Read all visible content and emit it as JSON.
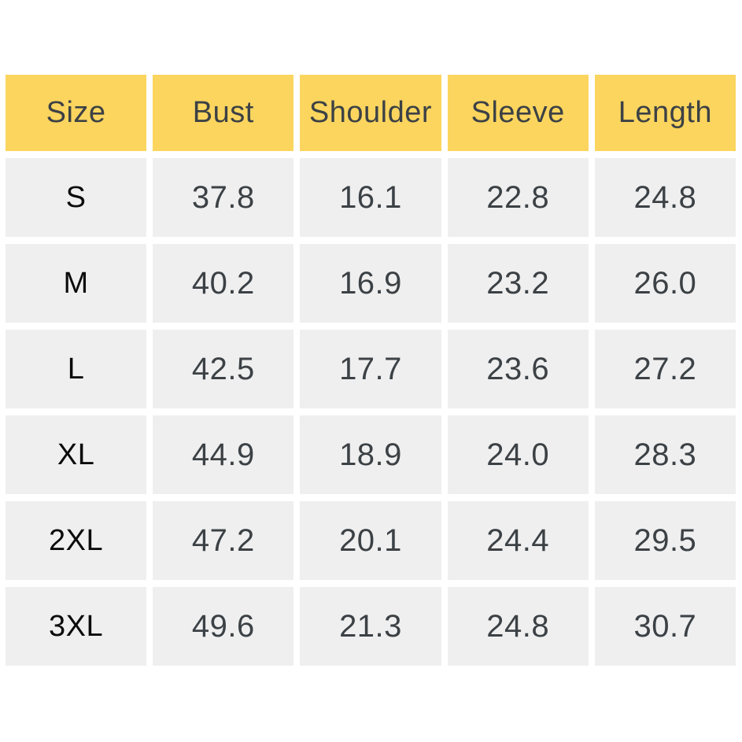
{
  "chart_data": {
    "type": "table",
    "title": "",
    "columns": [
      "Size",
      "Bust",
      "Shoulder",
      "Sleeve",
      "Length"
    ],
    "rows": [
      [
        "S",
        37.8,
        16.1,
        22.8,
        24.8
      ],
      [
        "M",
        40.2,
        16.9,
        23.2,
        26.0
      ],
      [
        "L",
        42.5,
        17.7,
        23.6,
        27.2
      ],
      [
        "XL",
        44.9,
        18.9,
        24.0,
        28.3
      ],
      [
        "2XL",
        47.2,
        20.1,
        24.4,
        29.5
      ],
      [
        "3XL",
        49.6,
        21.3,
        24.8,
        30.7
      ]
    ],
    "layout": {
      "header_position": "top",
      "grid": "cells separated by white gaps",
      "legend": "none"
    }
  },
  "table": {
    "headers": [
      "Size",
      "Bust",
      "Shoulder",
      "Sleeve",
      "Length"
    ],
    "rows": [
      {
        "size": "S",
        "bust": "37.8",
        "shoulder": "16.1",
        "sleeve": "22.8",
        "length": "24.8"
      },
      {
        "size": "M",
        "bust": "40.2",
        "shoulder": "16.9",
        "sleeve": "23.2",
        "length": "26.0"
      },
      {
        "size": "L",
        "bust": "42.5",
        "shoulder": "17.7",
        "sleeve": "23.6",
        "length": "27.2"
      },
      {
        "size": "XL",
        "bust": "44.9",
        "shoulder": "18.9",
        "sleeve": "24.0",
        "length": "28.3"
      },
      {
        "size": "2XL",
        "bust": "47.2",
        "shoulder": "20.1",
        "sleeve": "24.4",
        "length": "29.5"
      },
      {
        "size": "3XL",
        "bust": "49.6",
        "shoulder": "21.3",
        "sleeve": "24.8",
        "length": "30.7"
      }
    ]
  },
  "colors": {
    "header_background": "#FBD55E",
    "cell_background": "#EFEFEF",
    "header_text": "#3C4145",
    "value_text": "#3C4145",
    "size_text": "#0B0B0B",
    "page_background": "#FFFFFF"
  }
}
